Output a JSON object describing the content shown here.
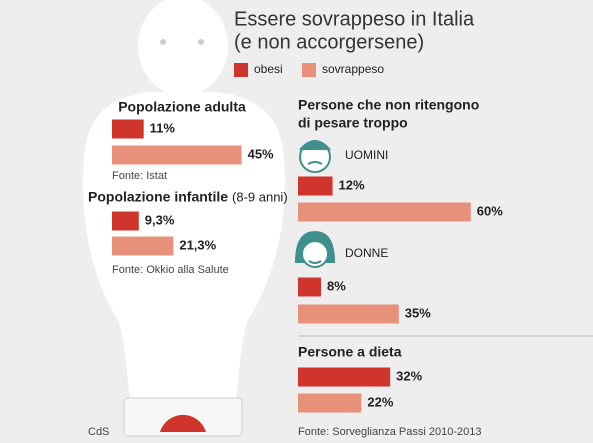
{
  "chart_data": {
    "type": "bar",
    "orientation": "horizontal",
    "title": [
      "Essere sovrappeso in Italia",
      "(e non accorgersene)"
    ],
    "series": [
      {
        "name": "obesi",
        "color": "#d0352b"
      },
      {
        "name": "sovrappeso",
        "color": "#e8917a"
      }
    ],
    "panels": [
      {
        "title": [
          "Popolazione adulta"
        ],
        "values": [
          [
            11
          ],
          [
            45
          ]
        ],
        "value_labels": [
          [
            "11%"
          ],
          [
            "45%"
          ]
        ],
        "source": "Fonte: Istat"
      },
      {
        "title": [
          "Popolazione infantile"
        ],
        "subtitle": "(8-9 anni)",
        "values": [
          [
            9.3
          ],
          [
            21.3
          ]
        ],
        "value_labels": [
          [
            "9,3%"
          ],
          [
            "21,3%"
          ]
        ],
        "source": "Fonte: Okkio alla Salute"
      },
      {
        "title": [
          "Persone che non ritengono",
          "di pesare troppo"
        ],
        "categories": [
          "UOMINI",
          "DONNE"
        ],
        "values": [
          [
            12,
            8
          ],
          [
            60,
            35
          ]
        ],
        "value_labels": [
          [
            "12%",
            "8%"
          ],
          [
            "60%",
            "35%"
          ]
        ]
      },
      {
        "title": [
          "Persone a dieta"
        ],
        "values": [
          [
            32
          ],
          [
            22
          ]
        ],
        "value_labels": [
          [
            "32%"
          ],
          [
            "22%"
          ]
        ],
        "source": "Fonte: Sorveglianza Passi 2010-2013"
      }
    ],
    "credit": "CdS"
  }
}
